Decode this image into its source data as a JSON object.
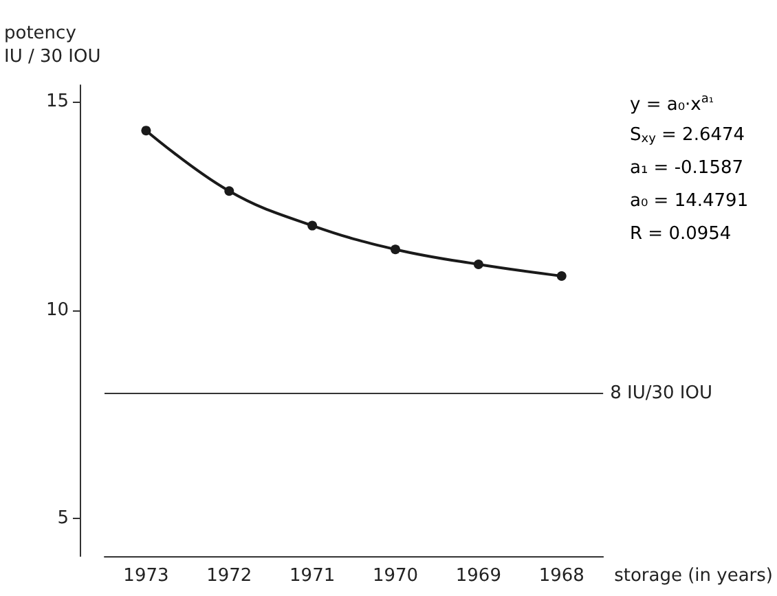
{
  "chart_data": {
    "type": "line",
    "ylabel": "potency\nIU / 30 IOU",
    "xlabel": "storage (in years)",
    "categories": [
      "1973",
      "1972",
      "1971",
      "1970",
      "1969",
      "1968"
    ],
    "series": [
      {
        "color": "#1a1a1a",
        "values": [
          14.31,
          12.86,
          12.03,
          11.46,
          11.1,
          10.82
        ]
      }
    ],
    "ylim": [
      4.1,
      15.4
    ],
    "yticks": [
      5,
      10,
      15
    ],
    "grid": false,
    "marker": "circle",
    "line_style": "solid",
    "ref_lines": [
      {
        "axis": "y",
        "value": 8,
        "label": "8 IU/30 IOU",
        "color": "#333333",
        "line_style": "solid"
      }
    ],
    "annotations": [
      "y = a₀·x$^{a₁}$",
      "S$_{xy}$ = 2.6474",
      "a₁ = -0.1587",
      "a₀ = 14.4791",
      "R = 0.0954"
    ]
  }
}
